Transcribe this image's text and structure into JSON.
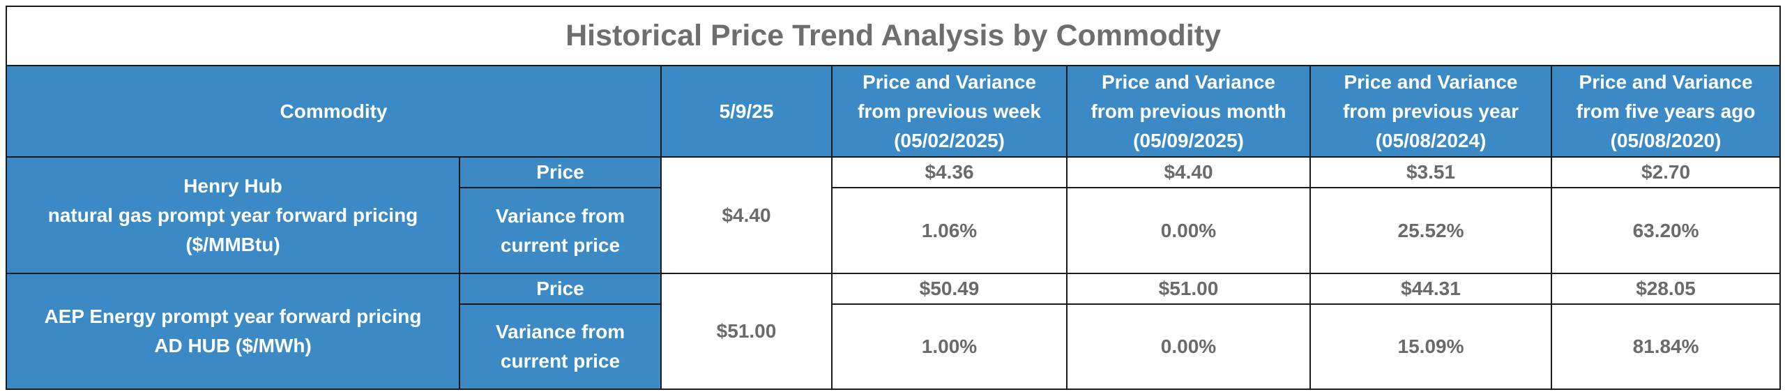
{
  "table": {
    "title": "Historical Price Trend Analysis by Commodity",
    "header": [
      [
        "Commodity"
      ],
      [
        "5/9/25"
      ],
      [
        "Price and Variance",
        "from previous week",
        "(05/02/2025)"
      ],
      [
        "Price and Variance",
        "from previous month",
        "(05/09/2025)"
      ],
      [
        "Price and Variance",
        "from previous year",
        "(05/08/2024)"
      ],
      [
        "Price and Variance",
        "from five years ago",
        "(05/08/2020)"
      ]
    ],
    "rows": [
      {
        "commodity": [
          "Henry Hub",
          "natural gas prompt year forward pricing",
          "($/MMBtu)"
        ],
        "current": "$4.40",
        "price_label": [
          "Price"
        ],
        "variance_label": [
          "Variance from",
          "current price"
        ],
        "prices": [
          "$4.36",
          "$4.40",
          "$3.51",
          "$2.70"
        ],
        "variances": [
          "1.06%",
          "0.00%",
          "25.52%",
          "63.20%"
        ]
      },
      {
        "commodity": [
          "AEP Energy prompt year forward pricing",
          "AD HUB ($/MWh)"
        ],
        "current": "$51.00",
        "price_label": [
          "Price"
        ],
        "variance_label": [
          "Variance from",
          "current price"
        ],
        "prices": [
          "$50.49",
          "$51.00",
          "$44.31",
          "$28.05"
        ],
        "variances": [
          "1.00%",
          "0.00%",
          "15.09%",
          "81.84%"
        ]
      }
    ]
  }
}
